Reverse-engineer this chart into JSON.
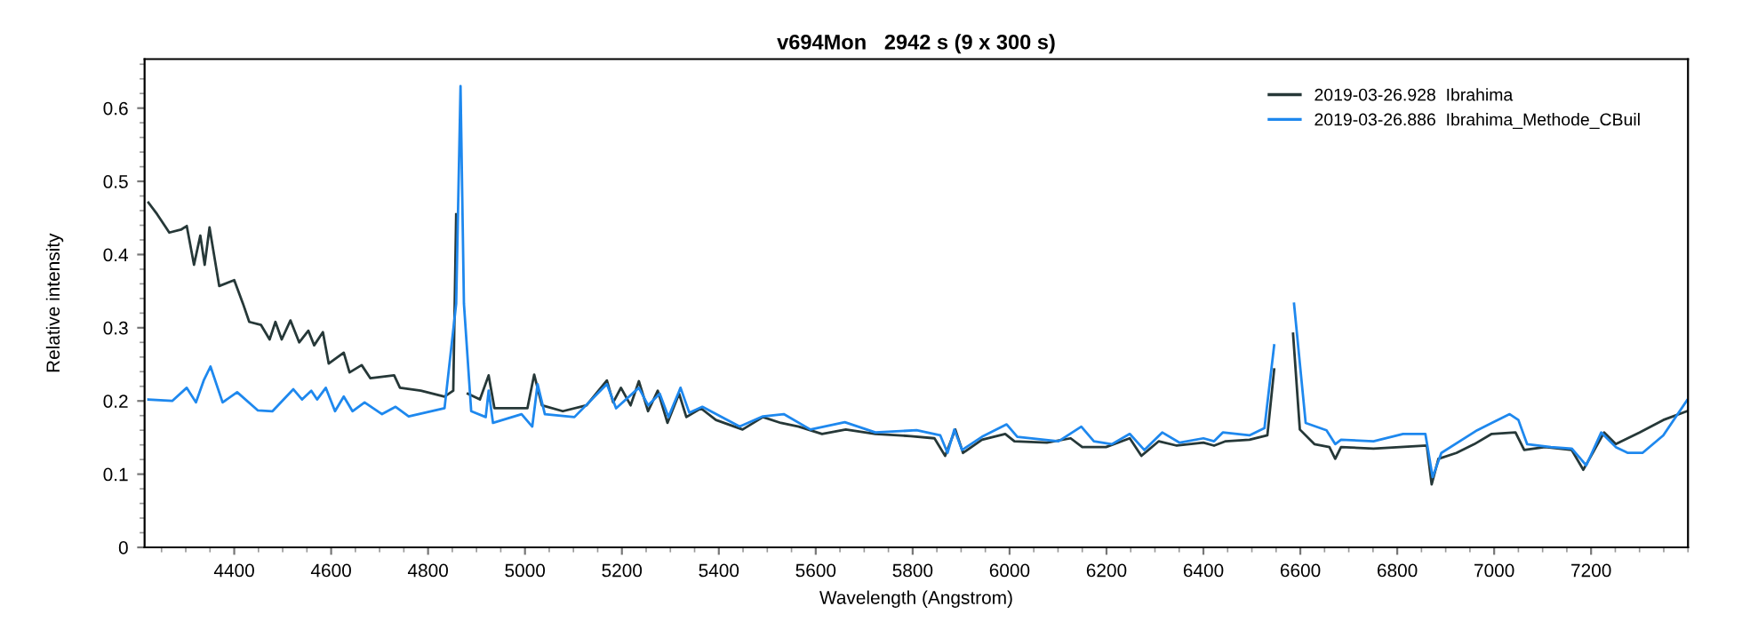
{
  "chart_data": {
    "type": "line",
    "title": "v694Mon   2942 s (9 x 300 s)",
    "xlabel": "Wavelength (Angstrom)",
    "ylabel": "Relative intensity",
    "xlim": [
      4215,
      7400
    ],
    "ylim": [
      0,
      0.667
    ],
    "xticks": [
      4400,
      4600,
      4800,
      5000,
      5200,
      5400,
      5600,
      5800,
      6000,
      6200,
      6400,
      6600,
      6800,
      7000,
      7200
    ],
    "yticks": [
      0,
      0.1,
      0.2,
      0.3,
      0.4,
      0.5,
      0.6
    ],
    "grid": false,
    "legend": "top right",
    "line_style": "solid",
    "marker": "none",
    "series": [
      {
        "name": "2019-03-26.928  Ibrahima",
        "color": "#263838",
        "x": [
          4223,
          4241,
          4266,
          4290,
          4302,
          4317,
          4330,
          4339,
          4349,
          4369,
          4400,
          4418,
          4431,
          4455,
          4473,
          4485,
          4498,
          4516,
          4534,
          4553,
          4565,
          4583,
          4595,
          4626,
          4638,
          4663,
          4681,
          4730,
          4742,
          4785,
          4834,
          4852,
          4858,
          4862,
          4868,
          4882,
          4907,
          4925,
          4937,
          4980,
          5005,
          5019,
          5035,
          5078,
          5127,
          5169,
          5182,
          5198,
          5218,
          5235,
          5254,
          5274,
          5294,
          5318,
          5333,
          5363,
          5394,
          5449,
          5491,
          5528,
          5565,
          5613,
          5662,
          5723,
          5796,
          5845,
          5867,
          5888,
          5904,
          5943,
          5991,
          6010,
          6077,
          6126,
          6150,
          6199,
          6248,
          6272,
          6308,
          6345,
          6400,
          6422,
          6446,
          6495,
          6532,
          6546,
          6554,
          6578,
          6585,
          6599,
          6629,
          6660,
          6672,
          6684,
          6751,
          6861,
          6871,
          6885,
          6922,
          6959,
          6995,
          7044,
          7062,
          7105,
          7160,
          7184,
          7227,
          7251,
          7300,
          7349,
          7398
        ],
        "values": [
          0.471,
          0.455,
          0.43,
          0.434,
          0.439,
          0.386,
          0.426,
          0.386,
          0.437,
          0.357,
          0.365,
          0.333,
          0.308,
          0.304,
          0.284,
          0.308,
          0.284,
          0.31,
          0.28,
          0.296,
          0.276,
          0.294,
          0.251,
          0.266,
          0.239,
          0.249,
          0.231,
          0.235,
          0.218,
          0.214,
          0.206,
          0.214,
          0.455,
          null,
          null,
          0.21,
          0.202,
          0.235,
          0.19,
          0.19,
          0.19,
          0.236,
          0.194,
          0.186,
          0.194,
          0.228,
          0.198,
          0.218,
          0.194,
          0.227,
          0.186,
          0.214,
          0.17,
          0.21,
          0.178,
          0.19,
          0.174,
          0.161,
          0.178,
          0.17,
          0.165,
          0.155,
          0.161,
          0.155,
          0.152,
          0.149,
          0.125,
          0.161,
          0.129,
          0.147,
          0.155,
          0.145,
          0.143,
          0.149,
          0.137,
          0.137,
          0.149,
          0.125,
          0.145,
          0.139,
          0.143,
          0.139,
          0.145,
          0.147,
          0.153,
          0.243,
          null,
          null,
          0.292,
          0.161,
          0.141,
          0.137,
          0.121,
          0.137,
          0.135,
          0.139,
          0.086,
          0.121,
          0.129,
          0.141,
          0.155,
          0.157,
          0.133,
          0.137,
          0.133,
          0.106,
          0.157,
          0.141,
          0.157,
          0.174,
          0.186
        ]
      },
      {
        "name": "2019-03-26.886  Ibrahima_Methode_CBuil",
        "color": "#1e88ee",
        "x": [
          4223,
          4272,
          4302,
          4321,
          4337,
          4351,
          4376,
          4406,
          4449,
          4479,
          4522,
          4540,
          4559,
          4571,
          4589,
          4608,
          4626,
          4644,
          4669,
          4705,
          4733,
          4760,
          4834,
          4858,
          4867,
          4874,
          4889,
          4919,
          4925,
          4934,
          4993,
          5015,
          5026,
          5041,
          5102,
          5169,
          5188,
          5235,
          5254,
          5278,
          5296,
          5321,
          5339,
          5366,
          5443,
          5491,
          5534,
          5589,
          5660,
          5723,
          5808,
          5857,
          5872,
          5886,
          5902,
          5943,
          5994,
          6016,
          6101,
          6148,
          6174,
          6211,
          6248,
          6278,
          6315,
          6351,
          6400,
          6422,
          6440,
          6495,
          6526,
          6546,
          6556,
          6574,
          6587,
          6611,
          6654,
          6672,
          6684,
          6751,
          6812,
          6858,
          6873,
          6891,
          6965,
          6995,
          7032,
          7050,
          7068,
          7117,
          7160,
          7190,
          7221,
          7251,
          7276,
          7306,
          7349,
          7398
        ],
        "values": [
          0.202,
          0.2,
          0.218,
          0.198,
          0.228,
          0.247,
          0.198,
          0.212,
          0.187,
          0.186,
          0.216,
          0.202,
          0.214,
          0.202,
          0.218,
          0.186,
          0.206,
          0.186,
          0.198,
          0.182,
          0.192,
          0.179,
          0.19,
          0.333,
          0.63,
          0.333,
          0.186,
          0.178,
          0.214,
          0.17,
          0.182,
          0.165,
          0.223,
          0.182,
          0.178,
          0.223,
          0.19,
          0.218,
          0.194,
          0.21,
          0.178,
          0.218,
          0.184,
          0.192,
          0.165,
          0.179,
          0.182,
          0.161,
          0.171,
          0.157,
          0.16,
          0.153,
          0.129,
          0.161,
          0.133,
          0.151,
          0.168,
          0.151,
          0.145,
          0.165,
          0.145,
          0.141,
          0.155,
          0.133,
          0.157,
          0.143,
          0.149,
          0.145,
          0.157,
          0.153,
          0.163,
          0.276,
          null,
          null,
          0.333,
          0.17,
          0.16,
          0.141,
          0.147,
          0.145,
          0.155,
          0.155,
          0.096,
          0.129,
          0.16,
          0.17,
          0.182,
          0.174,
          0.141,
          0.137,
          0.135,
          0.112,
          0.157,
          0.137,
          0.129,
          0.129,
          0.153,
          0.201
        ]
      }
    ]
  }
}
